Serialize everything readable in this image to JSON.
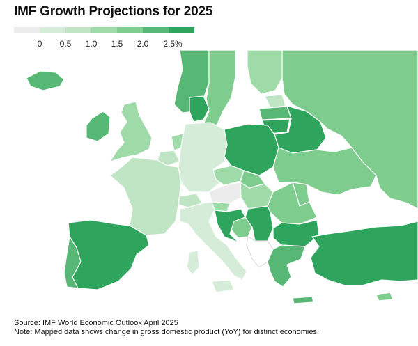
{
  "title": "IMF Growth Projections for 2025",
  "legend": {
    "bins": [
      {
        "label": "0",
        "color": "#ececec"
      },
      {
        "label": "0.5",
        "color": "#d5ecd8"
      },
      {
        "label": "1.0",
        "color": "#bfe5c4"
      },
      {
        "label": "1.5",
        "color": "#9fdaa9"
      },
      {
        "label": "2.0",
        "color": "#7ecd8f"
      },
      {
        "label": "2.5%",
        "color": "#56b874"
      },
      {
        "label": "",
        "color": "#2ea45c"
      }
    ]
  },
  "colors": {
    "sea": "#ffffff",
    "border": "#ffffff",
    "non_data_land": "#ffffff"
  },
  "footer": {
    "source": "Source: IMF World Economic Outlook April 2025",
    "note": "Note: Mapped data shows change in gross domestic product (YoY) for distinct economies."
  }
}
